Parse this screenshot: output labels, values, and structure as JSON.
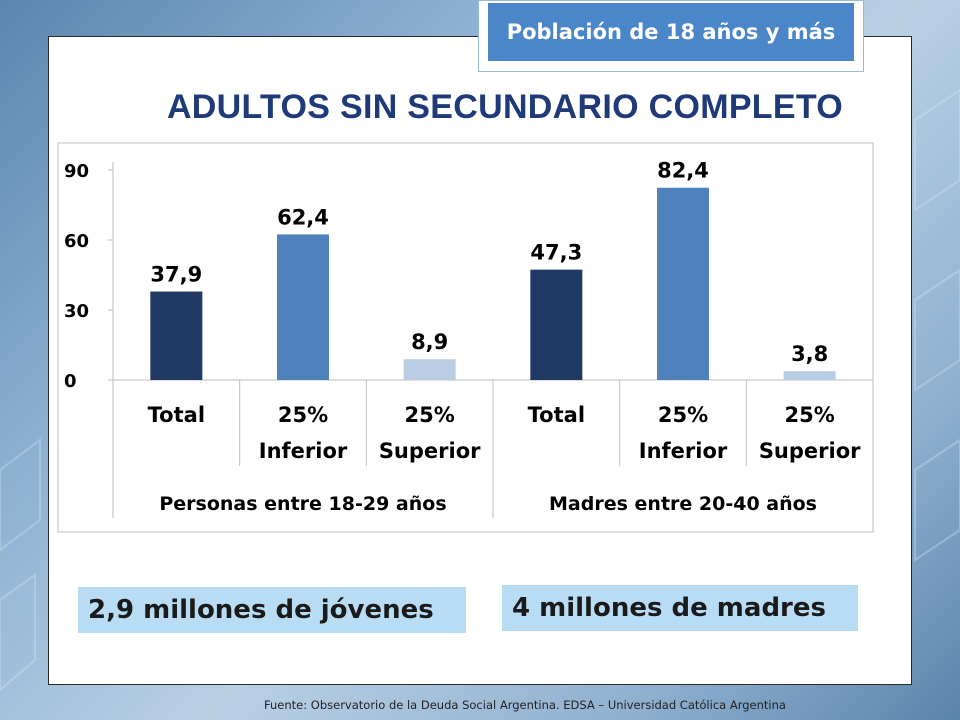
{
  "badge": {
    "text": "Población de 18 años y más"
  },
  "title": "ADULTOS SIN SECUNDARIO COMPLETO",
  "colors": {
    "dark": "#1f3864",
    "mid": "#4f81bd",
    "light": "#b9cde5"
  },
  "chart_data": {
    "type": "bar",
    "title": "",
    "ylim": [
      0,
      90
    ],
    "yticks": [
      "0",
      "30",
      "60",
      "90"
    ],
    "grid": false,
    "groups": [
      {
        "label": "Personas entre 18-29 años",
        "categories": [
          "Total",
          "25% Inferior",
          "25% Superior"
        ]
      },
      {
        "label": "Madres entre 20-40 años",
        "categories": [
          "Total",
          "25% Inferior",
          "25% Superior"
        ]
      }
    ],
    "categories": [
      {
        "line1": "Total",
        "line2": ""
      },
      {
        "line1": "25%",
        "line2": "Inferior"
      },
      {
        "line1": "25%",
        "line2": "Superior"
      },
      {
        "line1": "Total",
        "line2": ""
      },
      {
        "line1": "25%",
        "line2": "Inferior"
      },
      {
        "line1": "25%",
        "line2": "Superior"
      }
    ],
    "values": [
      37.9,
      62.4,
      8.9,
      47.3,
      82.4,
      3.8
    ],
    "value_labels": [
      "37,9",
      "62,4",
      "8,9",
      "47,3",
      "82,4",
      "3,8"
    ],
    "bar_colors": [
      "#1f3864",
      "#4f81bd",
      "#b9cde5",
      "#1f3864",
      "#4f81bd",
      "#b9cde5"
    ]
  },
  "callouts": {
    "left": "2,9 millones de jóvenes",
    "right": "4 millones de madres"
  },
  "source": "Fuente:  Observatorio de  la Deuda Social Argentina. EDSA  – Universidad Católica Argentina"
}
